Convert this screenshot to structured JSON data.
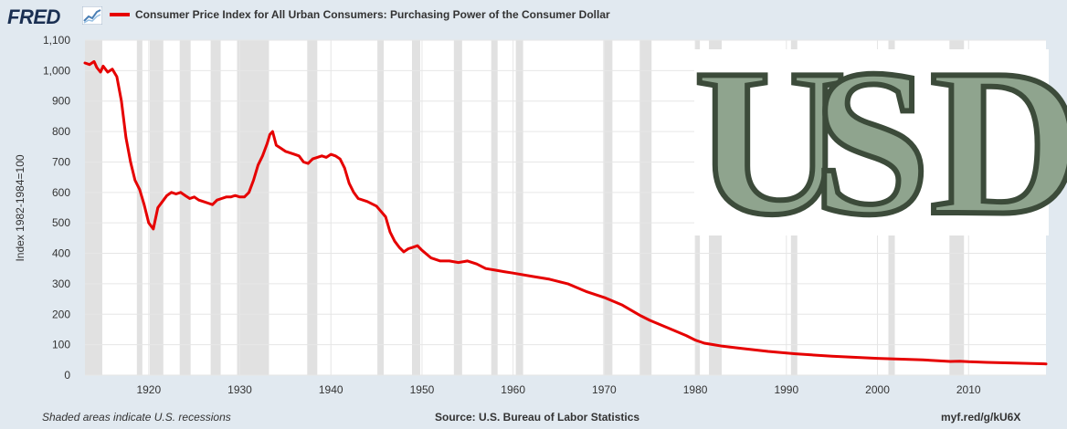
{
  "header": {
    "logo_text": "FRED",
    "legend_label": "Consumer Price Index for All Urban Consumers: Purchasing Power of the Consumer Dollar",
    "series_color": "#e60000"
  },
  "footer": {
    "note": "Shaded areas indicate U.S. recessions",
    "source": "Source: U.S. Bureau of Labor Statistics",
    "link": "myf.red/g/kU6X"
  },
  "overlay": {
    "letters": [
      "U",
      "S",
      "D"
    ]
  },
  "chart_data": {
    "type": "line",
    "title": "",
    "xlabel": "",
    "ylabel": "Index 1982-1984=100",
    "xlim": [
      1913,
      2018.5
    ],
    "ylim": [
      0,
      1100
    ],
    "yticks": [
      0,
      100,
      200,
      300,
      400,
      500,
      600,
      700,
      800,
      900,
      1000,
      1100
    ],
    "ytick_labels": [
      "0",
      "100",
      "200",
      "300",
      "400",
      "500",
      "600",
      "700",
      "800",
      "900",
      "1,000",
      "1,100"
    ],
    "xticks": [
      1920,
      1930,
      1940,
      1950,
      1960,
      1970,
      1980,
      1990,
      2000,
      2010
    ],
    "xtick_labels": [
      "1920",
      "1930",
      "1940",
      "1950",
      "1960",
      "1970",
      "1980",
      "1990",
      "2000",
      "2010"
    ],
    "grid": true,
    "legend_position": "top-left",
    "recessions": [
      [
        1913.0,
        1914.9
      ],
      [
        1918.7,
        1919.3
      ],
      [
        1920.1,
        1921.6
      ],
      [
        1923.4,
        1924.6
      ],
      [
        1926.8,
        1927.9
      ],
      [
        1929.7,
        1933.2
      ],
      [
        1937.4,
        1938.5
      ],
      [
        1945.1,
        1945.8
      ],
      [
        1948.9,
        1949.8
      ],
      [
        1953.5,
        1954.4
      ],
      [
        1957.6,
        1958.3
      ],
      [
        1960.3,
        1961.1
      ],
      [
        1969.9,
        1970.9
      ],
      [
        1973.9,
        1975.2
      ],
      [
        1980.0,
        1980.5
      ],
      [
        1981.5,
        1982.9
      ],
      [
        1990.5,
        1991.2
      ],
      [
        2001.2,
        2001.9
      ],
      [
        2007.9,
        2009.5
      ]
    ],
    "series": [
      {
        "color": "#e60000",
        "x": [
          1913,
          1913.5,
          1914,
          1914.3,
          1914.7,
          1915,
          1915.5,
          1916,
          1916.5,
          1917,
          1917.5,
          1918,
          1918.5,
          1919,
          1919.5,
          1920,
          1920.5,
          1921,
          1921.5,
          1922,
          1922.5,
          1923,
          1923.5,
          1924,
          1924.5,
          1925,
          1925.5,
          1926,
          1926.5,
          1927,
          1927.5,
          1928,
          1928.5,
          1929,
          1929.5,
          1930,
          1930.5,
          1931,
          1931.5,
          1932,
          1932.5,
          1933,
          1933.3,
          1933.6,
          1934,
          1934.5,
          1935,
          1935.5,
          1936,
          1936.5,
          1937,
          1937.5,
          1938,
          1938.5,
          1939,
          1939.5,
          1940,
          1940.5,
          1941,
          1941.5,
          1942,
          1942.5,
          1943,
          1944,
          1945,
          1946,
          1946.5,
          1947,
          1947.5,
          1948,
          1948.5,
          1949,
          1949.5,
          1950,
          1951,
          1952,
          1953,
          1954,
          1955,
          1956,
          1957,
          1958,
          1959,
          1960,
          1962,
          1964,
          1966,
          1968,
          1970,
          1972,
          1974,
          1975,
          1977,
          1979,
          1980,
          1981,
          1982,
          1983,
          1985,
          1988,
          1991,
          1995,
          2000,
          2005,
          2008,
          2009,
          2010,
          2012,
          2015,
          2018.5
        ],
        "values": [
          1025,
          1020,
          1030,
          1010,
          995,
          1015,
          995,
          1005,
          980,
          900,
          780,
          700,
          640,
          610,
          560,
          500,
          480,
          550,
          570,
          590,
          600,
          595,
          600,
          590,
          580,
          585,
          575,
          570,
          565,
          560,
          575,
          580,
          585,
          585,
          590,
          585,
          585,
          600,
          640,
          690,
          720,
          760,
          790,
          800,
          755,
          745,
          735,
          730,
          725,
          720,
          700,
          695,
          710,
          715,
          720,
          715,
          725,
          720,
          710,
          680,
          630,
          600,
          580,
          570,
          555,
          520,
          470,
          440,
          420,
          405,
          415,
          420,
          425,
          410,
          385,
          375,
          375,
          370,
          375,
          365,
          350,
          345,
          340,
          335,
          325,
          315,
          300,
          275,
          255,
          230,
          195,
          180,
          155,
          130,
          115,
          105,
          100,
          95,
          88,
          78,
          70,
          62,
          55,
          50,
          45,
          46,
          44,
          42,
          40,
          37
        ]
      }
    ]
  }
}
